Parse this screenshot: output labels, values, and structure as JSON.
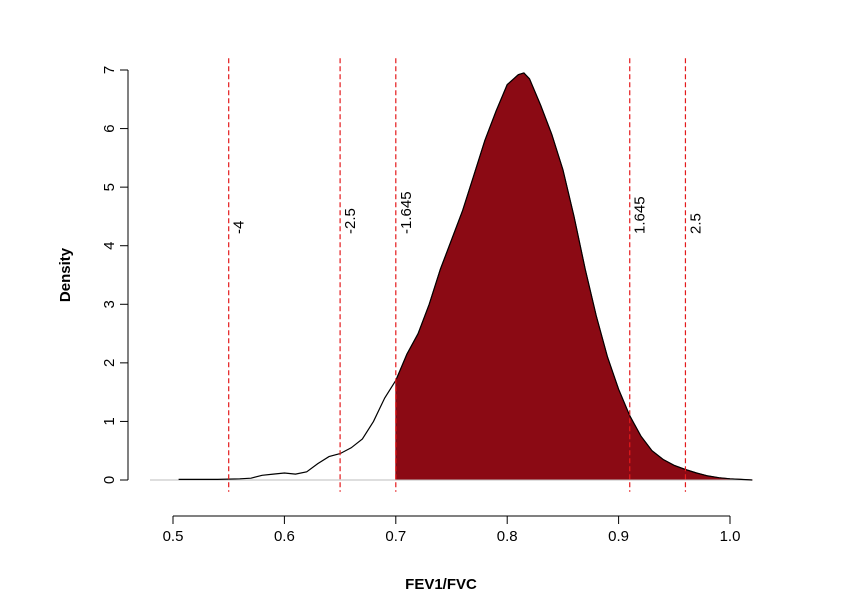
{
  "chart_data": {
    "type": "area",
    "title": "",
    "xlabel": "FEV1/FVC",
    "ylabel": "Density",
    "xlim": [
      0.5,
      1.0
    ],
    "ylim": [
      0,
      7
    ],
    "x_ticks": [
      "0.5",
      "0.6",
      "0.7",
      "0.8",
      "0.9",
      "1.0"
    ],
    "y_ticks": [
      "0",
      "1",
      "2",
      "3",
      "4",
      "5",
      "6",
      "7"
    ],
    "grid": false,
    "fill_color": "#8B0A14",
    "fill_from_x": 0.7,
    "curve_color": "#000000",
    "reference_line_color": "#E41A1C",
    "reference_lines": [
      {
        "x": 0.55,
        "label": "-4"
      },
      {
        "x": 0.65,
        "label": "-2.5"
      },
      {
        "x": 0.7,
        "label": "-1.645"
      },
      {
        "x": 0.91,
        "label": "1.645"
      },
      {
        "x": 0.96,
        "label": "2.5"
      }
    ],
    "density": {
      "x": [
        0.505,
        0.52,
        0.54,
        0.56,
        0.57,
        0.58,
        0.59,
        0.6,
        0.61,
        0.62,
        0.63,
        0.64,
        0.65,
        0.66,
        0.67,
        0.68,
        0.69,
        0.7,
        0.71,
        0.72,
        0.73,
        0.74,
        0.75,
        0.76,
        0.77,
        0.78,
        0.79,
        0.8,
        0.81,
        0.815,
        0.82,
        0.83,
        0.84,
        0.85,
        0.86,
        0.87,
        0.88,
        0.89,
        0.9,
        0.91,
        0.92,
        0.93,
        0.94,
        0.95,
        0.96,
        0.97,
        0.98,
        0.99,
        1.0,
        1.01,
        1.02
      ],
      "y": [
        0.01,
        0.01,
        0.01,
        0.02,
        0.03,
        0.08,
        0.1,
        0.12,
        0.1,
        0.14,
        0.28,
        0.4,
        0.45,
        0.55,
        0.7,
        1.0,
        1.4,
        1.7,
        2.15,
        2.5,
        3.0,
        3.6,
        4.1,
        4.6,
        5.2,
        5.8,
        6.3,
        6.75,
        6.92,
        6.95,
        6.85,
        6.4,
        5.9,
        5.3,
        4.5,
        3.6,
        2.8,
        2.1,
        1.55,
        1.1,
        0.75,
        0.5,
        0.35,
        0.25,
        0.18,
        0.12,
        0.07,
        0.04,
        0.02,
        0.01,
        0.0
      ]
    }
  }
}
